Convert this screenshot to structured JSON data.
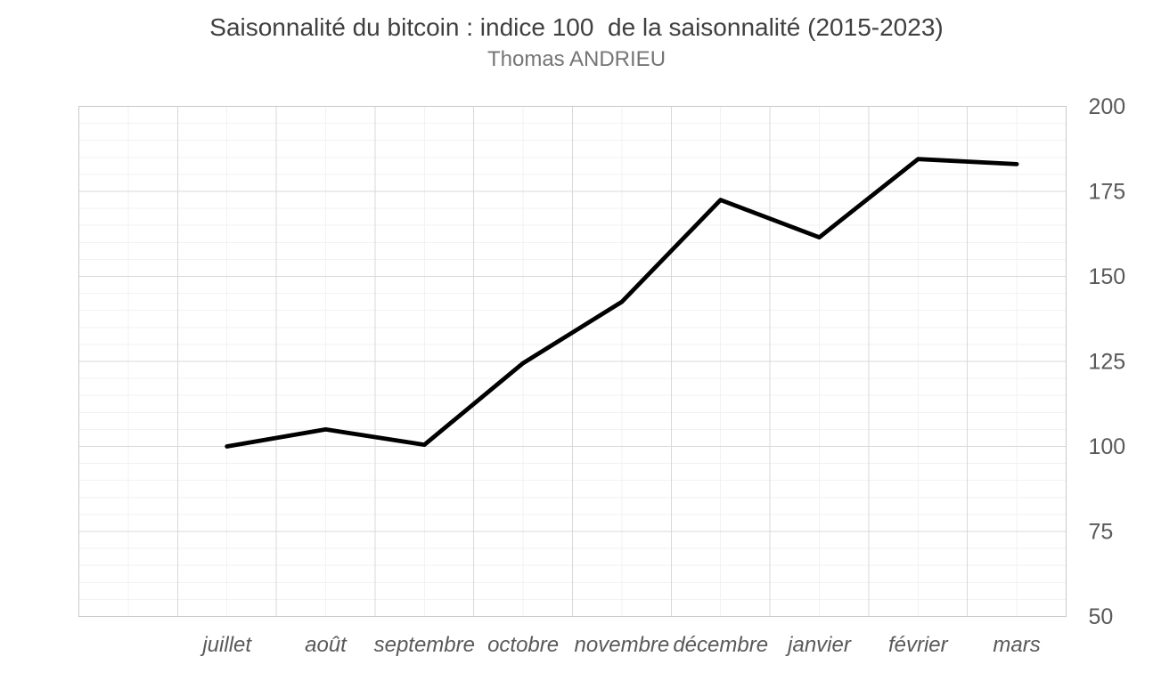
{
  "header": {
    "title": "Saisonnalité du bitcoin : indice 100  de la saisonnalité (2015-2023)",
    "subtitle": "Thomas ANDRIEU"
  },
  "colors": {
    "background": "#FFFFFF",
    "title_text": "#404040",
    "subtitle_text": "#757575",
    "tick_label_text": "#595959",
    "grid_major": "#D9D9D9",
    "grid_minor": "#F2F2F2",
    "plot_border": "#C9C9C9",
    "line": "#000000"
  },
  "chart_data": {
    "type": "line",
    "title": "Saisonnalité du bitcoin : indice 100  de la saisonnalité (2015-2023)",
    "subtitle": "Thomas ANDRIEU",
    "categories": [
      "",
      "juillet",
      "août",
      "septembre",
      "octobre",
      "novembre",
      "décembre",
      "janvier",
      "février",
      "mars"
    ],
    "values": [
      null,
      100,
      105,
      100.5,
      124.5,
      142.5,
      172.5,
      161.5,
      184.5,
      183
    ],
    "xlabel": "",
    "ylabel": "",
    "ylim": [
      50,
      200
    ],
    "y_axis": {
      "side": "right",
      "major_step": 25,
      "minor_step": 5,
      "tick_labels": [
        "200",
        "175",
        "150",
        "125",
        "100",
        "75",
        "50"
      ]
    },
    "x_axis": {
      "label_style": "italic",
      "labels_shown": [
        "juillet",
        "août",
        "septembre",
        "octobre",
        "novembre",
        "décembre",
        "janvier",
        "février",
        "mars"
      ]
    },
    "grid": {
      "horizontal_major": true,
      "horizontal_minor": true,
      "vertical_major": true,
      "vertical_minor": "category-midpoints"
    },
    "legend": "none",
    "markers": "none",
    "line_width": 4.8
  }
}
